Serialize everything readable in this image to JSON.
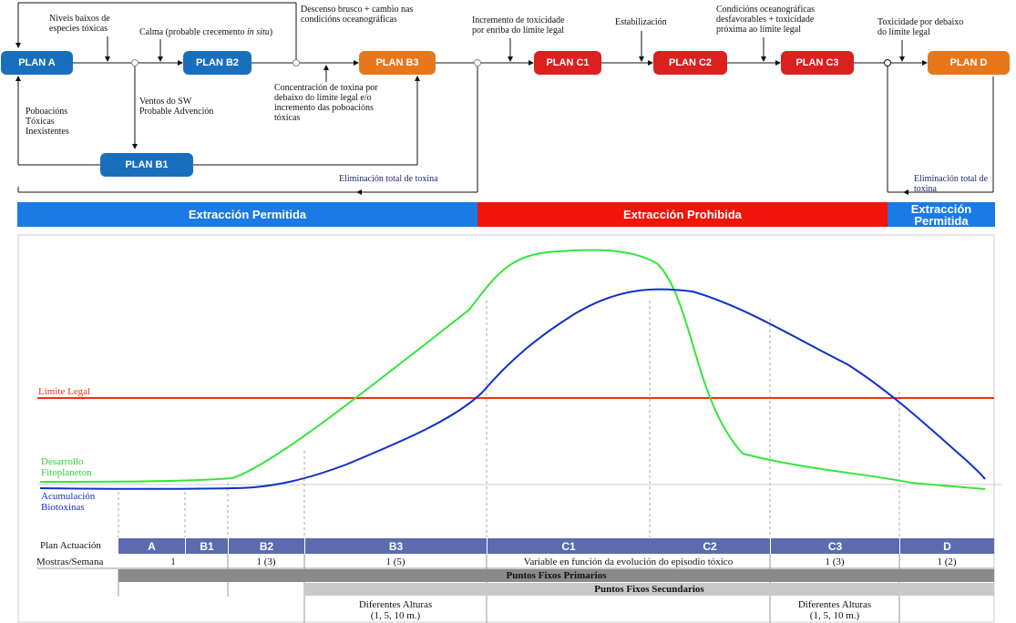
{
  "colors": {
    "blue_plan": "#1a6fbd",
    "orange_plan": "#e8771c",
    "red_plan": "#dc1f1f",
    "band_blue": "#1a7ae6",
    "band_red": "#f0140a",
    "legal_line": "#ee3311",
    "green_curve": "#33e63a",
    "blue_curve": "#1030c8",
    "table_head": "#5b6cae"
  },
  "plans": {
    "a": "PLAN A",
    "b2": "PLAN B2",
    "b3": "PLAN B3",
    "b1": "PLAN B1",
    "c1": "PLAN C1",
    "c2": "PLAN C2",
    "c3": "PLAN C3",
    "d": "PLAN D"
  },
  "notes": {
    "niveis_baixos": "Niveis baixos de\nespecies tóxicas",
    "calma_prefix": "Calma (probable crecemento ",
    "calma_italic": "in situ",
    "calma_suffix": ")",
    "descenso": "Descenso brusco + cambio nas\ncondicións oceanográficas",
    "incremento": "Incremento de toxicidade\npor enriba do límite legal",
    "estabilizacion": "Estabilización",
    "condicions": "Condicións oceanográficas\ndesfavorables + toxicidade\npróxima ao límite legal",
    "toxicidade_debaixo": "Toxicidade por debaixo\ndo límite legal",
    "ventos": "Ventos do SW\nProbable Advención",
    "poboacions": "Poboacións\nTóxicas\nInexistentes",
    "concentracion": "Concentración de toxina por\ndebaixo do límite legal e/o\nincremento das poboacións\ntóxicas",
    "eliminacion_1": "Eliminación total de toxina",
    "eliminacion_2": "Eliminación total de\ntoxina"
  },
  "bands": {
    "permitida": "Extracción Permitida",
    "prohibida": "Extracción Prohibida",
    "permitida_end": "Extracción\nPermitida"
  },
  "chart": {
    "limite_legal": "Límite Legal",
    "desarrollo": "Desarrollo\nFitoplaneton",
    "acumulacion": "Acumulación\nBiotoxinas"
  },
  "chart_data": {
    "type": "line",
    "x": [
      0,
      0.07,
      0.14,
      0.21,
      0.28,
      0.35,
      0.42,
      0.47,
      0.52,
      0.56,
      0.6,
      0.64,
      0.67,
      0.7,
      0.73,
      0.77,
      0.81,
      0.85,
      0.9,
      0.95,
      1.0
    ],
    "series": [
      {
        "name": "Desarrollo Fitoplaneton",
        "values": [
          0.04,
          0.04,
          0.06,
          0.18,
          0.4,
          0.62,
          0.85,
          0.97,
          1.0,
          0.98,
          0.88,
          0.55,
          0.28,
          0.26,
          0.24,
          0.19,
          0.14,
          0.1,
          0.06,
          0.02,
          0.0
        ]
      },
      {
        "name": "Acumulación Biotoxinas",
        "values": [
          0.0,
          0.0,
          0.0,
          0.01,
          0.06,
          0.18,
          0.34,
          0.5,
          0.66,
          0.78,
          0.85,
          0.87,
          0.86,
          0.82,
          0.75,
          0.62,
          0.5,
          0.38,
          0.24,
          0.1,
          0.05
        ]
      }
    ],
    "reference_line": "Límite Legal",
    "grid": false
  },
  "table": {
    "row_plan": "Plan Actuación",
    "row_mostras": "Mostras/Semana",
    "headers": [
      "A",
      "B1",
      "B2",
      "B3",
      "C1",
      "C2",
      "C3",
      "D"
    ],
    "mostras": [
      "1",
      "1 (3)",
      "1 (5)",
      "Variable en función da evolución do episodio tóxico",
      "1 (3)",
      "1 (2)"
    ],
    "fixos_primarios": "Puntos Fixos Primarios",
    "fixos_secundarios": "Puntos Fixos Secundarios",
    "alturas": [
      "Diferentes Alturas\n(1, 5, 10 m.)",
      "Diferentes Alturas\n(1, 5, 10 m.)"
    ]
  }
}
